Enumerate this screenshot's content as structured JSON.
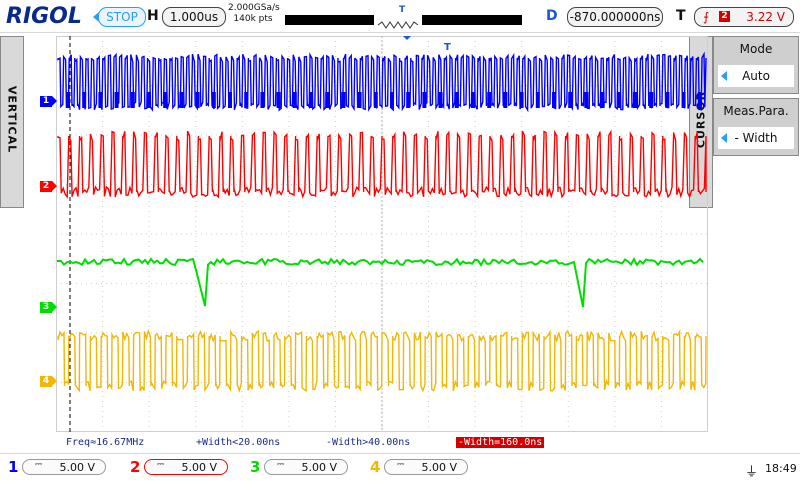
{
  "header": {
    "logo": "RIGOL",
    "run_state": "STOP",
    "horizontal_label": "H",
    "timebase": "1.000us",
    "sample_rate": "2.000GSa/s",
    "memory_depth": "140k pts",
    "trigger_marker": "T",
    "delay_label": "D",
    "delay_value": "-870.000000ns",
    "trigger_label": "T",
    "trigger_channel": "2",
    "trigger_level": "3.22 V"
  },
  "side_tabs": {
    "left": "VERTICAL",
    "right": "CURSOR"
  },
  "menu": {
    "mode_label": "Mode",
    "mode_value": "Auto",
    "meas_label": "Meas.Para.",
    "meas_value": "- Width"
  },
  "channels": [
    {
      "num": "1",
      "scale": "5.00 V",
      "color": "#0000ff"
    },
    {
      "num": "2",
      "scale": "5.00 V",
      "color": "#ff0000"
    },
    {
      "num": "3",
      "scale": "5.00 V",
      "color": "#00dd00"
    },
    {
      "num": "4",
      "scale": "5.00 V",
      "color": "#f2b705"
    }
  ],
  "measurements": {
    "freq": "Freq≈16.67MHz",
    "pos_width": "+Width<20.00ns",
    "neg_width": "-Width>40.00ns",
    "neg_width_highlight": "-Width=160.0ns"
  },
  "status": {
    "usb_icon": "usb-icon",
    "time": "18:49"
  },
  "colors": {
    "accent": "#2a9df4",
    "brand": "#0a2a8a",
    "trigger": "#d40000"
  }
}
